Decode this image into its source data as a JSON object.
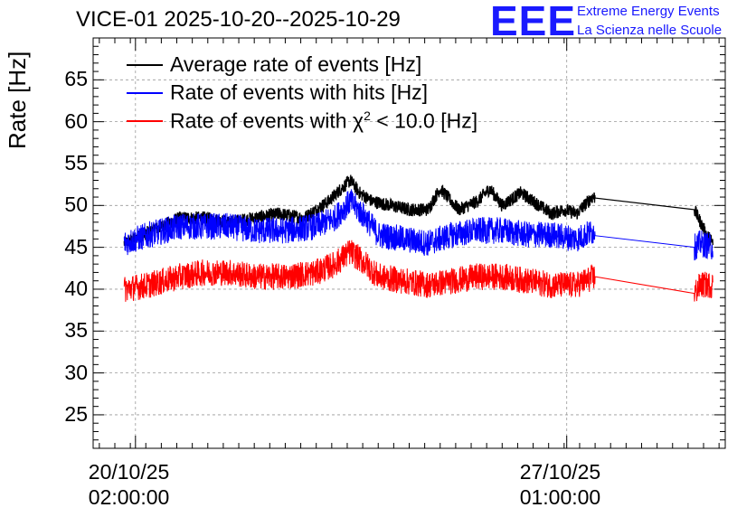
{
  "page": {
    "title": "VICE-01 2025-10-20--2025-10-29",
    "logo_letters": "EEE",
    "logo_line1": "Extreme Energy Events",
    "logo_line2": "La Scienza nelle Scuole"
  },
  "colors": {
    "average": "#000000",
    "hits": "#0000ff",
    "chi2": "#ff0000",
    "logo": "#1a1aff",
    "grid": "#999999"
  },
  "chart_data": {
    "type": "line",
    "title": "VICE-01 2025-10-20--2025-10-29",
    "xlabel": "",
    "ylabel": "Rate [Hz]",
    "xunit": "days since 2025-10-20 00:00",
    "xlim": [
      -0.6,
      9.6
    ],
    "ylim": [
      21,
      70
    ],
    "grid": true,
    "legend_position": "top-left",
    "yticks": [
      25,
      30,
      35,
      40,
      45,
      50,
      55,
      60,
      65
    ],
    "xticks": [
      {
        "x": 0.083,
        "line1": "20/10/25",
        "line2": "02:00:00"
      },
      {
        "x": 7.042,
        "line1": "27/10/25",
        "line2": "01:00:00"
      }
    ],
    "data_gap": [
      7.5,
      9.1
    ],
    "series": [
      {
        "name": "Average rate of events [Hz]",
        "key": "average",
        "points": [
          [
            -0.1,
            45.5
          ],
          [
            0.2,
            46.5
          ],
          [
            0.5,
            47.5
          ],
          [
            0.8,
            48.5
          ],
          [
            1.2,
            48.5
          ],
          [
            1.6,
            48
          ],
          [
            2.0,
            48.5
          ],
          [
            2.4,
            49
          ],
          [
            2.8,
            48.5
          ],
          [
            3.2,
            50.5
          ],
          [
            3.4,
            52
          ],
          [
            3.55,
            53
          ],
          [
            3.7,
            51.5
          ],
          [
            3.9,
            50.5
          ],
          [
            4.2,
            50
          ],
          [
            4.5,
            49.5
          ],
          [
            4.8,
            49.5
          ],
          [
            5.0,
            52
          ],
          [
            5.3,
            49.5
          ],
          [
            5.6,
            50.5
          ],
          [
            5.8,
            52
          ],
          [
            6.0,
            50
          ],
          [
            6.3,
            51.5
          ],
          [
            6.6,
            50
          ],
          [
            6.8,
            49
          ],
          [
            7.0,
            49.5
          ],
          [
            7.2,
            49
          ],
          [
            7.45,
            51
          ],
          [
            7.5,
            51
          ],
          [
            9.1,
            49.5
          ],
          [
            9.3,
            46.5
          ],
          [
            9.4,
            45.5
          ]
        ],
        "noise": 0.8
      },
      {
        "name": "Rate of events with hits [Hz]",
        "key": "hits",
        "points": [
          [
            -0.1,
            45.5
          ],
          [
            0.3,
            46.5
          ],
          [
            0.8,
            47.5
          ],
          [
            1.2,
            47.5
          ],
          [
            1.6,
            47.5
          ],
          [
            2.0,
            47
          ],
          [
            2.5,
            47
          ],
          [
            3.0,
            47.5
          ],
          [
            3.3,
            48.5
          ],
          [
            3.55,
            50.5
          ],
          [
            3.8,
            48.5
          ],
          [
            4.0,
            46.5
          ],
          [
            4.4,
            46
          ],
          [
            4.8,
            45.5
          ],
          [
            5.2,
            46.5
          ],
          [
            5.6,
            47
          ],
          [
            6.0,
            47
          ],
          [
            6.4,
            46.5
          ],
          [
            6.8,
            46.5
          ],
          [
            7.2,
            46
          ],
          [
            7.5,
            47
          ],
          [
            9.1,
            45
          ],
          [
            9.2,
            45.5
          ],
          [
            9.4,
            45
          ]
        ],
        "noise": 1.6
      },
      {
        "name": "Rate of events with χ² < 10.0 [Hz]",
        "key": "chi2",
        "points": [
          [
            -0.1,
            40
          ],
          [
            0.3,
            40.5
          ],
          [
            0.8,
            41.5
          ],
          [
            1.2,
            42
          ],
          [
            1.6,
            42
          ],
          [
            2.0,
            41.5
          ],
          [
            2.5,
            41.5
          ],
          [
            3.0,
            42
          ],
          [
            3.3,
            43
          ],
          [
            3.55,
            44.5
          ],
          [
            3.8,
            43
          ],
          [
            4.0,
            41.5
          ],
          [
            4.4,
            41
          ],
          [
            4.8,
            40.5
          ],
          [
            5.2,
            41
          ],
          [
            5.6,
            41.5
          ],
          [
            6.0,
            41.5
          ],
          [
            6.4,
            41
          ],
          [
            6.8,
            40.5
          ],
          [
            7.2,
            40.5
          ],
          [
            7.5,
            41.5
          ],
          [
            9.1,
            39.5
          ],
          [
            9.2,
            40.5
          ],
          [
            9.4,
            40.5
          ]
        ],
        "noise": 1.6
      }
    ]
  },
  "legend": {
    "average_label": "Average rate of events [Hz]",
    "hits_label": "Rate of events with hits [Hz]",
    "chi2_prefix": "Rate of events with ",
    "chi2_symbol": "χ",
    "chi2_sup": "2",
    "chi2_suffix": " < 10.0 [Hz]"
  }
}
